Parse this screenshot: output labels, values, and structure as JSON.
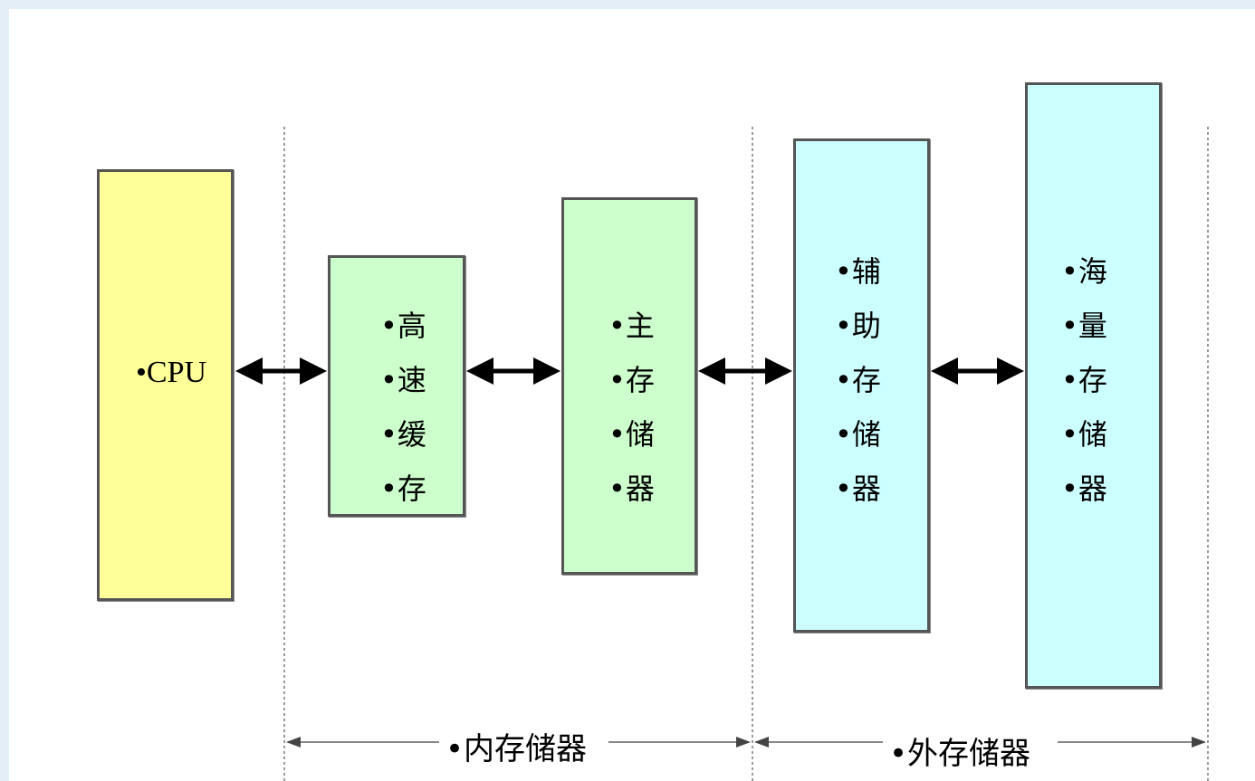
{
  "cpu": {
    "label": "•CPU"
  },
  "cache": {
    "lines": [
      "•高",
      "•速",
      "•缓",
      "•存"
    ]
  },
  "main_memory": {
    "lines": [
      "•主",
      "•存",
      "•储",
      "•器"
    ]
  },
  "aux_storage": {
    "lines": [
      "•辅",
      "•助",
      "•存",
      "•储",
      "•器"
    ]
  },
  "mass_storage": {
    "lines": [
      "•海",
      "•量",
      "•存",
      "•储",
      "•器"
    ]
  },
  "groups": {
    "internal": "•内存储器",
    "external": "•外存储器"
  },
  "colors": {
    "cpu": "#ffff99",
    "internal_memory": "#ccffcc",
    "external_memory": "#ccffff",
    "border": "#555555",
    "arrow": "#000000",
    "divider": "#999999"
  }
}
